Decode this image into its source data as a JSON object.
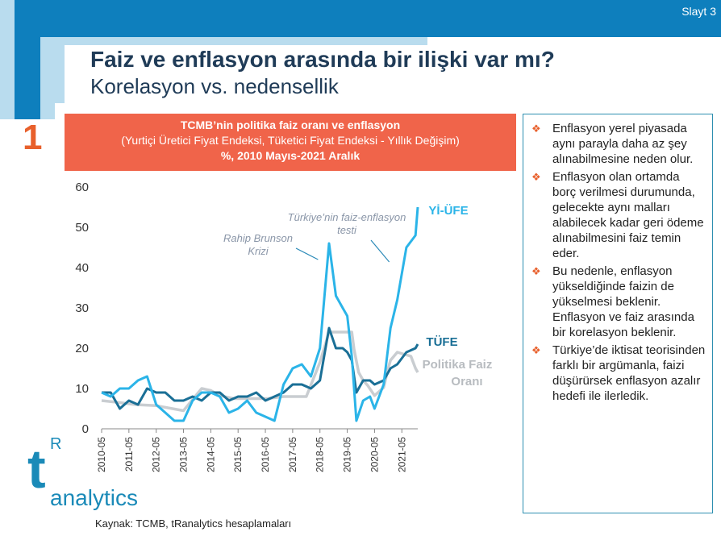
{
  "slide_label": "Slayt 3",
  "title": "Faiz ve enflasyon arasında bir ilişki var mı?",
  "subtitle": "Korelasyon vs. nedensellik",
  "big_number": "1",
  "chart_header": {
    "line1": "TCMB’nin politika faiz oranı ve enflasyon",
    "line2": "(Yurtiçi Üretici Fiyat Endeksi, Tüketici Fiyat Endeksi - Yıllık Değişim)",
    "line3": "%, 2010 Mayıs-2021 Aralık"
  },
  "bullets": [
    "Enflasyon yerel piyasada aynı parayla daha az şey alınabilmesine neden olur.",
    "Enflasyon olan ortamda borç verilmesi durumunda, gelecekte aynı malları alabilecek kadar geri ödeme alınabilmesini faiz temin eder.",
    "Bu nedenle, enflasyon yükseldiğinde faizin de yükselmesi beklenir. Enflasyon ve faiz arasında bir korelasyon beklenir.",
    "Türkiye’de iktisat teorisinden farklı bir argümanla, faizi düşürürsek enflasyon azalır hedefi ile ilerledik."
  ],
  "logo": {
    "t": "t",
    "r": "R",
    "text": "analytics"
  },
  "source": "Kaynak: TCMB, tRanalytics hesaplamaları",
  "colors": {
    "yi_ufe": "#2bb4e8",
    "tufe": "#1a6f96",
    "faiz": "#c9cdd1",
    "accent": "#f0644a",
    "brand": "#0e7fbd"
  },
  "chart_data": {
    "type": "line",
    "ylim": [
      0,
      60
    ],
    "yticks": [
      0,
      10,
      20,
      30,
      40,
      50,
      60
    ],
    "xticks": [
      "2010-05",
      "2011-05",
      "2012-05",
      "2013-05",
      "2014-05",
      "2015-05",
      "2016-05",
      "2017-05",
      "2018-05",
      "2019-05",
      "2020-05",
      "2021-05"
    ],
    "x_start": "2010-05",
    "x_end": "2021-12",
    "series_labels": {
      "yi_ufe": "Yİ-ÜFE",
      "tufe": "TÜFE",
      "faiz": "Politika Faiz Oranı"
    },
    "annotations": [
      {
        "text": "Rahip Brunson Krizi",
        "x": "2018-07",
        "y": 46
      },
      {
        "text": "Türkiye’nin faiz-enflasyon testi",
        "x": "2021-03",
        "y": 45
      }
    ],
    "series": [
      {
        "name": "Yİ-ÜFE",
        "key": "yi_ufe",
        "points": [
          [
            "2010-05",
            9
          ],
          [
            "2010-09",
            8
          ],
          [
            "2011-01",
            10
          ],
          [
            "2011-05",
            10
          ],
          [
            "2011-09",
            12
          ],
          [
            "2012-01",
            13
          ],
          [
            "2012-05",
            6
          ],
          [
            "2012-09",
            4
          ],
          [
            "2013-01",
            2
          ],
          [
            "2013-05",
            2
          ],
          [
            "2013-09",
            7
          ],
          [
            "2014-01",
            9
          ],
          [
            "2014-05",
            9
          ],
          [
            "2014-09",
            8
          ],
          [
            "2015-01",
            4
          ],
          [
            "2015-05",
            5
          ],
          [
            "2015-09",
            7
          ],
          [
            "2016-01",
            4
          ],
          [
            "2016-05",
            3
          ],
          [
            "2016-09",
            2
          ],
          [
            "2017-01",
            11
          ],
          [
            "2017-05",
            15
          ],
          [
            "2017-09",
            16
          ],
          [
            "2018-01",
            13
          ],
          [
            "2018-05",
            20
          ],
          [
            "2018-09",
            46
          ],
          [
            "2018-12",
            33
          ],
          [
            "2019-03",
            30
          ],
          [
            "2019-05",
            28
          ],
          [
            "2019-07",
            18
          ],
          [
            "2019-09",
            2
          ],
          [
            "2019-12",
            7
          ],
          [
            "2020-03",
            8
          ],
          [
            "2020-05",
            5
          ],
          [
            "2020-09",
            11
          ],
          [
            "2020-12",
            25
          ],
          [
            "2021-03",
            32
          ],
          [
            "2021-07",
            45
          ],
          [
            "2021-11",
            48
          ],
          [
            "2021-12",
            55
          ]
        ]
      },
      {
        "name": "TÜFE",
        "key": "tufe",
        "points": [
          [
            "2010-05",
            9
          ],
          [
            "2010-09",
            9
          ],
          [
            "2011-01",
            5
          ],
          [
            "2011-05",
            7
          ],
          [
            "2011-09",
            6
          ],
          [
            "2012-01",
            10
          ],
          [
            "2012-05",
            9
          ],
          [
            "2012-09",
            9
          ],
          [
            "2013-01",
            7
          ],
          [
            "2013-05",
            7
          ],
          [
            "2013-09",
            8
          ],
          [
            "2014-01",
            7
          ],
          [
            "2014-05",
            9
          ],
          [
            "2014-09",
            9
          ],
          [
            "2015-01",
            7
          ],
          [
            "2015-05",
            8
          ],
          [
            "2015-09",
            8
          ],
          [
            "2016-01",
            9
          ],
          [
            "2016-05",
            7
          ],
          [
            "2016-09",
            8
          ],
          [
            "2017-01",
            9
          ],
          [
            "2017-05",
            11
          ],
          [
            "2017-09",
            11
          ],
          [
            "2018-01",
            10
          ],
          [
            "2018-05",
            12
          ],
          [
            "2018-09",
            25
          ],
          [
            "2018-12",
            20
          ],
          [
            "2019-03",
            20
          ],
          [
            "2019-05",
            19
          ],
          [
            "2019-07",
            17
          ],
          [
            "2019-09",
            9
          ],
          [
            "2019-12",
            12
          ],
          [
            "2020-03",
            12
          ],
          [
            "2020-05",
            11
          ],
          [
            "2020-09",
            12
          ],
          [
            "2020-12",
            15
          ],
          [
            "2021-03",
            16
          ],
          [
            "2021-07",
            19
          ],
          [
            "2021-11",
            20
          ],
          [
            "2021-12",
            21
          ]
        ]
      },
      {
        "name": "Politika Faiz Oranı",
        "key": "faiz",
        "points": [
          [
            "2010-05",
            7
          ],
          [
            "2011-01",
            6.5
          ],
          [
            "2011-08",
            6
          ],
          [
            "2012-05",
            5.75
          ],
          [
            "2013-05",
            4.5
          ],
          [
            "2014-01",
            10
          ],
          [
            "2014-05",
            9.5
          ],
          [
            "2014-09",
            8.25
          ],
          [
            "2015-03",
            7.5
          ],
          [
            "2016-01",
            7.5
          ],
          [
            "2016-06",
            7.5
          ],
          [
            "2017-01",
            8
          ],
          [
            "2017-11",
            8
          ],
          [
            "2018-05",
            16.5
          ],
          [
            "2018-09",
            24
          ],
          [
            "2019-07",
            24
          ],
          [
            "2019-08",
            19.75
          ],
          [
            "2019-10",
            14
          ],
          [
            "2019-12",
            12
          ],
          [
            "2020-02",
            10.75
          ],
          [
            "2020-05",
            8.25
          ],
          [
            "2020-09",
            10.25
          ],
          [
            "2020-11",
            15
          ],
          [
            "2020-12",
            17
          ],
          [
            "2021-03",
            19
          ],
          [
            "2021-09",
            18
          ],
          [
            "2021-11",
            15
          ],
          [
            "2021-12",
            14
          ]
        ]
      }
    ]
  }
}
